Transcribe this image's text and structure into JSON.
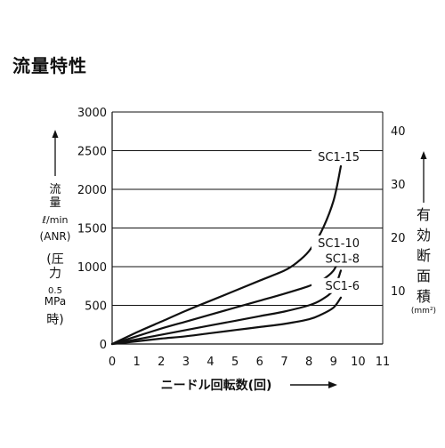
{
  "page": {
    "title": "流量特性"
  },
  "chart_data": {
    "type": "line",
    "title": "流量特性",
    "xlabel": "ニードル回転数(回)",
    "ylabel_left": {
      "l1": "流",
      "l2": "量",
      "l3": "ℓ/min",
      "l4": "(ANR)",
      "l5": "(圧",
      "l6": "力",
      "l7": "0.5",
      "l8": "MPa",
      "l9": "時)"
    },
    "ylabel_right": {
      "l1": "有",
      "l2": "効",
      "l3": "断",
      "l4": "面",
      "l5": "積",
      "unit": "(mm²)"
    },
    "xlim": [
      0,
      11
    ],
    "ylim": [
      0,
      3000
    ],
    "y2lim": [
      0,
      43.5
    ],
    "x_ticks": [
      "0",
      "1",
      "2",
      "3",
      "4",
      "5",
      "6",
      "7",
      "8",
      "9",
      "10",
      "11"
    ],
    "y_ticks": [
      "0",
      "500",
      "1000",
      "1500",
      "2000",
      "2500",
      "3000"
    ],
    "y2_ticks": [
      "10",
      "20",
      "30",
      "40"
    ],
    "grid": "horizontal",
    "series": [
      {
        "name": "SC1-15",
        "x": [
          0,
          1,
          2,
          3,
          4,
          5,
          6,
          7,
          7.5,
          8,
          8.5,
          9,
          9.3
        ],
        "y": [
          0,
          150,
          290,
          430,
          560,
          690,
          820,
          950,
          1050,
          1200,
          1450,
          1850,
          2300
        ]
      },
      {
        "name": "SC1-10",
        "x": [
          0,
          1,
          2,
          3,
          4,
          5,
          6,
          7,
          8,
          8.5,
          9,
          9.3
        ],
        "y": [
          0,
          100,
          200,
          290,
          380,
          470,
          560,
          650,
          750,
          820,
          950,
          1150
        ]
      },
      {
        "name": "SC1-8",
        "x": [
          0,
          1,
          2,
          3,
          4,
          5,
          6,
          7,
          8,
          8.5,
          9,
          9.3
        ],
        "y": [
          0,
          60,
          120,
          180,
          240,
          300,
          360,
          420,
          500,
          570,
          700,
          950
        ]
      },
      {
        "name": "SC1-6",
        "x": [
          0,
          1,
          2,
          3,
          4,
          5,
          6,
          7,
          8,
          8.5,
          9,
          9.3
        ],
        "y": [
          0,
          35,
          70,
          100,
          140,
          180,
          220,
          260,
          320,
          380,
          470,
          600
        ]
      }
    ],
    "colors": {
      "line": "#111111",
      "grid": "#111111"
    }
  }
}
